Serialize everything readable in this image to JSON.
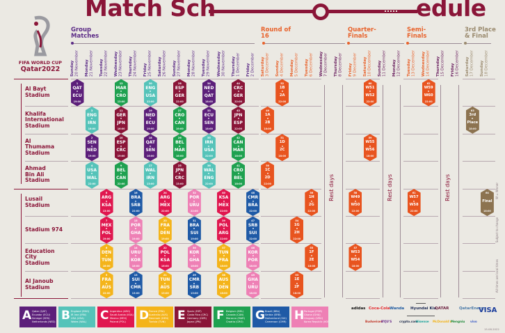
{
  "title": {
    "part1": "Match Sch",
    "part2": "edule"
  },
  "logo": {
    "line1": "FIFA WORLD CUP",
    "line2": "Qatar2022"
  },
  "stages": [
    {
      "label": "Group Matches",
      "color": "#5b2a86"
    },
    {
      "label": "Round of 16",
      "color": "#e8622b"
    },
    {
      "label": "Quarter-Finals",
      "color": "#e8622b"
    },
    {
      "label": "Semi-Finals",
      "color": "#e8622b"
    },
    {
      "label": "3rd Place & Final",
      "color": "#9a8a6e"
    }
  ],
  "days": [
    {
      "day": "Sunday",
      "date": "20 November",
      "color": "#5b2a86"
    },
    {
      "day": "Monday",
      "date": "21 November",
      "color": "#5b2a86"
    },
    {
      "day": "Tuesday",
      "date": "22 November",
      "color": "#5b2a86"
    },
    {
      "day": "Wednesday",
      "date": "23 November",
      "color": "#5b2a86"
    },
    {
      "day": "Thursday",
      "date": "24 November",
      "color": "#5b2a86"
    },
    {
      "day": "Friday",
      "date": "25 November",
      "color": "#5b2a86"
    },
    {
      "day": "Saturday",
      "date": "26 November",
      "color": "#5b2a86"
    },
    {
      "day": "Sunday",
      "date": "27 November",
      "color": "#5b2a86"
    },
    {
      "day": "Monday",
      "date": "28 November",
      "color": "#5b2a86"
    },
    {
      "day": "Tuesday",
      "date": "29 November",
      "color": "#5b2a86"
    },
    {
      "day": "Wednesday",
      "date": "30 November",
      "color": "#5b2a86"
    },
    {
      "day": "Thursday",
      "date": "1 December",
      "color": "#5b2a86"
    },
    {
      "day": "Friday",
      "date": "2 December",
      "color": "#5b2a86"
    },
    {
      "day": "Saturday",
      "date": "3 December",
      "color": "#e8622b"
    },
    {
      "day": "Sunday",
      "date": "4 December",
      "color": "#e8622b"
    },
    {
      "day": "Monday",
      "date": "5 December",
      "color": "#e8622b"
    },
    {
      "day": "Tuesday",
      "date": "6 December",
      "color": "#e8622b"
    },
    {
      "day": "Wednesday",
      "date": "7 December",
      "color": "#6b2060"
    },
    {
      "day": "Thursday",
      "date": "8 December",
      "color": "#6b2060"
    },
    {
      "day": "Friday",
      "date": "9 December",
      "color": "#e8622b"
    },
    {
      "day": "Saturday",
      "date": "10 December",
      "color": "#e8622b"
    },
    {
      "day": "Sunday",
      "date": "11 December",
      "color": "#6b2060"
    },
    {
      "day": "Monday",
      "date": "12 December",
      "color": "#6b2060"
    },
    {
      "day": "Tuesday",
      "date": "13 December",
      "color": "#e8622b"
    },
    {
      "day": "Wednesday",
      "date": "14 December",
      "color": "#e8622b"
    },
    {
      "day": "Thursday",
      "date": "15 December",
      "color": "#6b2060"
    },
    {
      "day": "Friday",
      "date": "16 December",
      "color": "#6b2060"
    },
    {
      "day": "Saturday",
      "date": "17 December",
      "color": "#9a8a6e"
    },
    {
      "day": "Sunday",
      "date": "18 December",
      "color": "#9a8a6e"
    }
  ],
  "stadiums": [
    {
      "name": "Al Bayt Stadium",
      "lines": [
        "Al Bayt",
        "Stadium"
      ]
    },
    {
      "name": "Khalifa International Stadium",
      "lines": [
        "Khalifa",
        "International",
        "Stadium"
      ]
    },
    {
      "name": "Al Thumama Stadium",
      "lines": [
        "Al",
        "Thumama",
        "Stadium"
      ]
    },
    {
      "name": "Ahmad Bin Ali Stadium",
      "lines": [
        "Ahmad",
        "Bin Ali",
        "Stadium"
      ]
    },
    {
      "name": "Lusail Stadium",
      "lines": [
        "Lusail",
        "Stadium"
      ]
    },
    {
      "name": "Stadium 974",
      "lines": [
        "Stadium 974"
      ]
    },
    {
      "name": "Education City Stadium",
      "lines": [
        "Education",
        "City",
        "Stadium"
      ]
    },
    {
      "name": "Al Janoub Stadium",
      "lines": [
        "Al Janoub",
        "Stadium"
      ]
    }
  ],
  "rest_label": "Rest days",
  "group_colors": {
    "A": "#5c1f7a",
    "B": "#55c3b9",
    "C": "#e0174f",
    "D": "#f4b41a",
    "E": "#8a1538",
    "F": "#1fa150",
    "G": "#1f5aa6",
    "H": "#ee80b5",
    "KO": "#e8541f",
    "F3": "#8c7350"
  },
  "matches": [
    {
      "n": "1",
      "s": 0,
      "d": 0,
      "g": "A",
      "t1": "QAT",
      "t2": "ECU",
      "time": "19:00"
    },
    {
      "n": "12",
      "s": 0,
      "d": 3,
      "g": "F",
      "t1": "MAR",
      "t2": "CRO",
      "time": "13:00"
    },
    {
      "n": "20",
      "s": 0,
      "d": 5,
      "g": "B",
      "t1": "ENG",
      "t2": "USA",
      "time": "22:00"
    },
    {
      "n": "28",
      "s": 0,
      "d": 7,
      "g": "E",
      "t1": "ESP",
      "t2": "GER",
      "time": "22:00"
    },
    {
      "n": "34",
      "s": 0,
      "d": 9,
      "g": "A",
      "t1": "NED",
      "t2": "QAT",
      "time": "18:00"
    },
    {
      "n": "44",
      "s": 0,
      "d": 11,
      "g": "E",
      "t1": "CRC",
      "t2": "GER",
      "time": "22:00"
    },
    {
      "n": "52",
      "s": 0,
      "d": 14,
      "g": "KO",
      "t1": "1B",
      "t2": "2A",
      "time": "22:00"
    },
    {
      "n": "60",
      "s": 0,
      "d": 20,
      "g": "KO",
      "t1": "W51",
      "t2": "W52",
      "time": "22:00"
    },
    {
      "n": "62",
      "s": 0,
      "d": 24,
      "g": "KO",
      "t1": "W59",
      "t2": "W60",
      "time": "22:00"
    },
    {
      "n": "3",
      "s": 1,
      "d": 1,
      "g": "B",
      "t1": "ENG",
      "t2": "IRN",
      "time": "16:00"
    },
    {
      "n": "11",
      "s": 1,
      "d": 3,
      "g": "E",
      "t1": "GER",
      "t2": "JPN",
      "time": "16:00"
    },
    {
      "n": "19",
      "s": 1,
      "d": 5,
      "g": "A",
      "t1": "NED",
      "t2": "ECU",
      "time": "19:00"
    },
    {
      "n": "27",
      "s": 1,
      "d": 7,
      "g": "F",
      "t1": "CRO",
      "t2": "CAN",
      "time": "19:00"
    },
    {
      "n": "33",
      "s": 1,
      "d": 9,
      "g": "A",
      "t1": "ECU",
      "t2": "SEN",
      "time": "18:00"
    },
    {
      "n": "43",
      "s": 1,
      "d": 11,
      "g": "E",
      "t1": "JPN",
      "t2": "ESP",
      "time": "22:00"
    },
    {
      "n": "49",
      "s": 1,
      "d": 13,
      "g": "KO",
      "t1": "1A",
      "t2": "2B",
      "time": "18:00"
    },
    {
      "n": "63",
      "s": 1,
      "d": 27,
      "g": "F3",
      "t1": "3rd",
      "t2": "Place",
      "time": "18:00"
    },
    {
      "n": "2",
      "s": 2,
      "d": 1,
      "g": "A",
      "t1": "SEN",
      "t2": "NED",
      "time": "19:00"
    },
    {
      "n": "10",
      "s": 2,
      "d": 3,
      "g": "E",
      "t1": "ESP",
      "t2": "CRC",
      "time": "19:00"
    },
    {
      "n": "18",
      "s": 2,
      "d": 5,
      "g": "A",
      "t1": "QAT",
      "t2": "SEN",
      "time": "16:00"
    },
    {
      "n": "26",
      "s": 2,
      "d": 7,
      "g": "F",
      "t1": "BEL",
      "t2": "MAR",
      "time": "16:00"
    },
    {
      "n": "35",
      "s": 2,
      "d": 9,
      "g": "B",
      "t1": "IRN",
      "t2": "USA",
      "time": "22:00"
    },
    {
      "n": "42",
      "s": 2,
      "d": 11,
      "g": "F",
      "t1": "CAN",
      "t2": "MAR",
      "time": "18:00"
    },
    {
      "n": "51",
      "s": 2,
      "d": 14,
      "g": "KO",
      "t1": "1D",
      "t2": "2C",
      "time": "18:00"
    },
    {
      "n": "59",
      "s": 2,
      "d": 20,
      "g": "KO",
      "t1": "W55",
      "t2": "W56",
      "time": "18:00"
    },
    {
      "n": "4",
      "s": 3,
      "d": 1,
      "g": "B",
      "t1": "USA",
      "t2": "WAL",
      "time": "22:00"
    },
    {
      "n": "9",
      "s": 3,
      "d": 3,
      "g": "F",
      "t1": "BEL",
      "t2": "CAN",
      "time": "22:00"
    },
    {
      "n": "17",
      "s": 3,
      "d": 5,
      "g": "B",
      "t1": "WAL",
      "t2": "IRN",
      "time": "13:00"
    },
    {
      "n": "25",
      "s": 3,
      "d": 7,
      "g": "E",
      "t1": "JPN",
      "t2": "CRC",
      "time": "13:00"
    },
    {
      "n": "36",
      "s": 3,
      "d": 9,
      "g": "B",
      "t1": "WAL",
      "t2": "ENG",
      "time": "22:00"
    },
    {
      "n": "41",
      "s": 3,
      "d": 11,
      "g": "F",
      "t1": "CRO",
      "t2": "BEL",
      "time": "18:00"
    },
    {
      "n": "50",
      "s": 3,
      "d": 13,
      "g": "KO",
      "t1": "1C",
      "t2": "2D",
      "time": "22:00"
    },
    {
      "n": "8",
      "s": 4,
      "d": 2,
      "g": "C",
      "t1": "ARG",
      "t2": "KSA",
      "time": "13:00"
    },
    {
      "n": "16",
      "s": 4,
      "d": 4,
      "g": "G",
      "t1": "BRA",
      "t2": "SRB",
      "time": "22:00"
    },
    {
      "n": "24",
      "s": 4,
      "d": 6,
      "g": "C",
      "t1": "ARG",
      "t2": "MEX",
      "time": "22:00"
    },
    {
      "n": "32",
      "s": 4,
      "d": 8,
      "g": "H",
      "t1": "POR",
      "t2": "URU",
      "time": "22:00"
    },
    {
      "n": "40",
      "s": 4,
      "d": 10,
      "g": "C",
      "t1": "KSA",
      "t2": "MEX",
      "time": "22:00"
    },
    {
      "n": "48",
      "s": 4,
      "d": 12,
      "g": "G",
      "t1": "CMR",
      "t2": "BRA",
      "time": "22:00"
    },
    {
      "n": "56",
      "s": 4,
      "d": 16,
      "g": "KO",
      "t1": "1H",
      "t2": "2G",
      "time": "22:00"
    },
    {
      "n": "58",
      "s": 4,
      "d": 19,
      "g": "KO",
      "t1": "W49",
      "t2": "W50",
      "time": "22:00"
    },
    {
      "n": "61",
      "s": 4,
      "d": 23,
      "g": "KO",
      "t1": "W57",
      "t2": "W58",
      "time": "22:00"
    },
    {
      "n": "64",
      "s": 4,
      "d": 28,
      "g": "F3",
      "t1": "Final",
      "t2": "",
      "time": "18:00"
    },
    {
      "n": "7",
      "s": 5,
      "d": 2,
      "g": "C",
      "t1": "MEX",
      "t2": "POL",
      "time": "19:00"
    },
    {
      "n": "15",
      "s": 5,
      "d": 4,
      "g": "H",
      "t1": "POR",
      "t2": "GHA",
      "time": "19:00"
    },
    {
      "n": "23",
      "s": 5,
      "d": 6,
      "g": "D",
      "t1": "FRA",
      "t2": "DEN",
      "time": "19:00"
    },
    {
      "n": "31",
      "s": 5,
      "d": 8,
      "g": "G",
      "t1": "BRA",
      "t2": "SUI",
      "time": "19:00"
    },
    {
      "n": "39",
      "s": 5,
      "d": 10,
      "g": "C",
      "t1": "POL",
      "t2": "ARG",
      "time": "22:00"
    },
    {
      "n": "47",
      "s": 5,
      "d": 12,
      "g": "G",
      "t1": "SRB",
      "t2": "SUI",
      "time": "22:00"
    },
    {
      "n": "54",
      "s": 5,
      "d": 15,
      "g": "KO",
      "t1": "1G",
      "t2": "2H",
      "time": "22:00"
    },
    {
      "n": "6",
      "s": 6,
      "d": 2,
      "g": "D",
      "t1": "DEN",
      "t2": "TUN",
      "time": "16:00"
    },
    {
      "n": "14",
      "s": 6,
      "d": 4,
      "g": "H",
      "t1": "URU",
      "t2": "KOR",
      "time": "16:00"
    },
    {
      "n": "22",
      "s": 6,
      "d": 6,
      "g": "C",
      "t1": "POL",
      "t2": "KSA",
      "time": "16:00"
    },
    {
      "n": "30",
      "s": 6,
      "d": 8,
      "g": "H",
      "t1": "KOR",
      "t2": "GHA",
      "time": "16:00"
    },
    {
      "n": "37",
      "s": 6,
      "d": 10,
      "g": "D",
      "t1": "TUN",
      "t2": "FRA",
      "time": "18:00"
    },
    {
      "n": "46",
      "s": 6,
      "d": 12,
      "g": "H",
      "t1": "KOR",
      "t2": "POR",
      "time": "18:00"
    },
    {
      "n": "55",
      "s": 6,
      "d": 16,
      "g": "KO",
      "t1": "1F",
      "t2": "2E",
      "time": "18:00"
    },
    {
      "n": "57",
      "s": 6,
      "d": 19,
      "g": "KO",
      "t1": "W53",
      "t2": "W54",
      "time": "18:00"
    },
    {
      "n": "5",
      "s": 7,
      "d": 2,
      "g": "D",
      "t1": "FRA",
      "t2": "AUS",
      "time": "22:00"
    },
    {
      "n": "13",
      "s": 7,
      "d": 4,
      "g": "G",
      "t1": "SUI",
      "t2": "CMR",
      "time": "13:00"
    },
    {
      "n": "21",
      "s": 7,
      "d": 6,
      "g": "D",
      "t1": "TUN",
      "t2": "AUS",
      "time": "13:00"
    },
    {
      "n": "29",
      "s": 7,
      "d": 8,
      "g": "G",
      "t1": "CMR",
      "t2": "SRB",
      "time": "13:00"
    },
    {
      "n": "38",
      "s": 7,
      "d": 10,
      "g": "D",
      "t1": "AUS",
      "t2": "DEN",
      "time": "18:00"
    },
    {
      "n": "45",
      "s": 7,
      "d": 12,
      "g": "H",
      "t1": "GHA",
      "t2": "URU",
      "time": "18:00"
    },
    {
      "n": "53",
      "s": 7,
      "d": 15,
      "g": "KO",
      "t1": "1E",
      "t2": "2F",
      "time": "18:00"
    }
  ],
  "groups": [
    {
      "letter": "A",
      "teams": [
        "Qatar (QAT)",
        "Ecuador (ECU)",
        "Senegal (SEN)",
        "Netherlands (NED)"
      ]
    },
    {
      "letter": "B",
      "teams": [
        "England (ENG)",
        "IR Iran (IRN)",
        "USA (USA)",
        "Wales (WAL)"
      ]
    },
    {
      "letter": "C",
      "teams": [
        "Argentina (ARG)",
        "Saudi Arabia (KSA)",
        "Mexico (MEX)",
        "Poland (POL)"
      ]
    },
    {
      "letter": "D",
      "teams": [
        "France (FRA)",
        "Australia (AUS)",
        "Denmark (DEN)",
        "Tunisia (TUN)"
      ]
    },
    {
      "letter": "E",
      "teams": [
        "Spain (ESP)",
        "Costa Rica (CRC)",
        "Germany (GER)",
        "Japan (JPN)"
      ]
    },
    {
      "letter": "F",
      "teams": [
        "Belgium (BEL)",
        "Canada (CAN)",
        "Morocco (MAR)",
        "Croatia (CRO)"
      ]
    },
    {
      "letter": "G",
      "teams": [
        "Brazil (BRA)",
        "Serbia (SRB)",
        "Switzerland (SUI)",
        "Cameroon (CMR)"
      ]
    },
    {
      "letter": "H",
      "teams": [
        "Portugal (POR)",
        "Ghana (GHA)",
        "Uruguay (URU)",
        "Korea Republic (KOR)"
      ]
    }
  ],
  "sponsors": {
    "row1": [
      {
        "name": "adidas",
        "color": "#111111"
      },
      {
        "name": "Coca-Cola",
        "color": "#e4262b"
      },
      {
        "name": "Wanda",
        "color": "#1e5aa0"
      },
      {
        "name": "Hyundai Kia",
        "color": "#1c2a55"
      },
      {
        "name": "QATAR",
        "color": "#6b1d3e"
      },
      {
        "name": "QatarEnergy",
        "color": "#4a7aa8"
      },
      {
        "name": "VISA",
        "color": "#1a3c9b"
      }
    ],
    "row2": [
      {
        "name": "Budweiser",
        "color": "#c0392b"
      },
      {
        "name": "BYJU'S",
        "color": "#6a2c8a"
      },
      {
        "name": "crypto.com",
        "color": "#1d2b4a"
      },
      {
        "name": "Hisense",
        "color": "#1aa39a"
      },
      {
        "name": "McDonald's",
        "color": "#f2b316"
      },
      {
        "name": "Mengniu",
        "color": "#1e8a3a"
      },
      {
        "name": "vivo",
        "color": "#3a5bc7"
      }
    ]
  },
  "notes": [
    "W = Winner",
    "Subject to change",
    "All times are local times"
  ],
  "date_stamp": "15.08.2022"
}
